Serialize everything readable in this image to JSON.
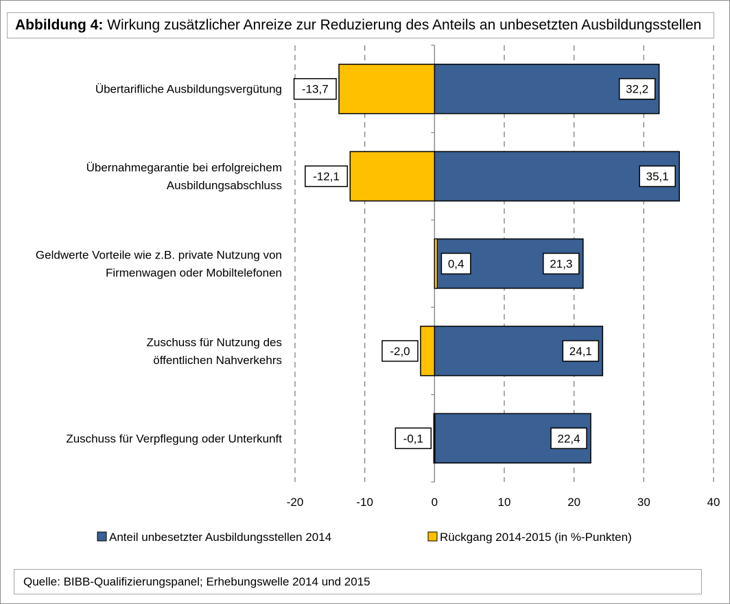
{
  "header": {
    "title_bold": "Abbildung 4:",
    "title_rest": " Wirkung zusätzlicher Anreize zur Reduzierung des Anteils an unbesetzten Ausbildungsstellen"
  },
  "footer": {
    "source": "Quelle: BIBB-Qualifizierungspanel; Erhebungswelle 2014 und 2015"
  },
  "chart_data": {
    "type": "bar",
    "orientation": "horizontal",
    "categories": [
      [
        "Übertarifliche Ausbildungsvergütung"
      ],
      [
        "Übernahmegarantie bei erfolgreichem",
        "Ausbildungsabschluss"
      ],
      [
        "Geldwerte Vorteile wie z.B. private Nutzung von",
        "Firmenwagen oder Mobiltelefonen"
      ],
      [
        "Zuschuss für Nutzung des",
        "öffentlichen Nahverkehrs"
      ],
      [
        "Zuschuss für Verpflegung oder Unterkunft"
      ]
    ],
    "series": [
      {
        "name": "Anteil unbesetzter Ausbildungsstellen 2014",
        "color": "#3a6094",
        "values": [
          32.2,
          35.1,
          21.3,
          24.1,
          22.4
        ],
        "labels": [
          "32,2",
          "35,1",
          "21,3",
          "24,1",
          "22,4"
        ]
      },
      {
        "name": "Rückgang 2014-2015 (in %-Punkten)",
        "color": "#ffc000",
        "values": [
          -13.7,
          -12.1,
          0.4,
          -2.0,
          -0.1
        ],
        "labels": [
          "-13,7",
          "-12,1",
          "0,4",
          "-2,0",
          "-0,1"
        ]
      }
    ],
    "xlim": [
      -20,
      40
    ],
    "xticks": [
      -20,
      -10,
      0,
      10,
      20,
      30,
      40
    ],
    "xtick_labels": [
      "-20",
      "-10",
      "0",
      "10",
      "20",
      "30",
      "40"
    ],
    "grid": "vertical dashed",
    "legend": "bottom"
  }
}
